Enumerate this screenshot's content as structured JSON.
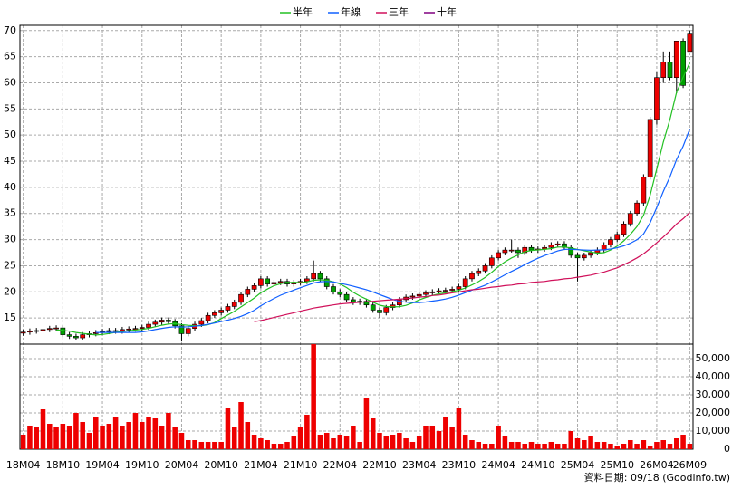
{
  "chart_data": {
    "type": "candlestick",
    "categories": [
      "18M04",
      null,
      null,
      null,
      null,
      null,
      "18M10",
      null,
      null,
      null,
      null,
      null,
      "19M04",
      null,
      null,
      null,
      null,
      null,
      "19M10",
      null,
      null,
      null,
      null,
      null,
      "20M04",
      null,
      null,
      null,
      null,
      null,
      "20M10",
      null,
      null,
      null,
      null,
      null,
      "21M04",
      null,
      null,
      null,
      null,
      null,
      "21M10",
      null,
      null,
      null,
      null,
      null,
      "22M04",
      null,
      null,
      null,
      null,
      null,
      "22M10",
      null,
      null,
      null,
      null,
      null,
      "23M04",
      null,
      null,
      null,
      null,
      null,
      "23M10",
      null,
      null,
      null,
      null,
      null,
      "24M04",
      null,
      null,
      null,
      null,
      null,
      "24M10",
      null,
      null,
      null,
      null,
      null,
      "25M04",
      null,
      null,
      null,
      null,
      null,
      "25M10",
      null,
      null,
      null,
      null,
      null,
      "26M04",
      null,
      null,
      null,
      null,
      "26M09"
    ],
    "open": [
      12.1,
      12.3,
      12.5,
      12.6,
      12.8,
      13.0,
      13.1,
      11.8,
      11.5,
      11.2,
      11.8,
      12.0,
      12.2,
      12.4,
      12.6,
      12.5,
      12.8,
      12.9,
      13.0,
      13.2,
      13.8,
      14.2,
      14.6,
      14.3,
      13.5,
      12.0,
      13.0,
      13.8,
      14.5,
      15.5,
      16.0,
      16.5,
      17.2,
      18.0,
      19.5,
      20.5,
      21.2,
      22.5,
      21.5,
      21.8,
      22.0,
      21.5,
      21.8,
      22.0,
      22.5,
      23.5,
      22.5,
      21.0,
      20.0,
      19.5,
      18.5,
      18.0,
      18.2,
      17.5,
      16.5,
      16.0,
      17.0,
      17.5,
      18.5,
      19.0,
      19.2,
      19.5,
      19.8,
      20.0,
      20.2,
      20.3,
      20.5,
      21.0,
      22.5,
      23.5,
      24.0,
      25.0,
      26.5,
      27.5,
      28.0,
      28.0,
      27.5,
      28.5,
      28.0,
      28.2,
      28.5,
      29.0,
      29.2,
      28.5,
      27.0,
      26.5,
      27.0,
      27.5,
      28.0,
      29.0,
      30.0,
      31.0,
      33.0,
      35.0,
      37.0,
      42.0,
      53.0,
      61.0,
      64.0,
      61.0,
      68.0,
      66.0
    ],
    "high": [
      12.8,
      13.0,
      13.1,
      13.3,
      13.5,
      13.6,
      13.6,
      12.3,
      12.0,
      12.3,
      12.5,
      12.7,
      12.9,
      13.1,
      13.1,
      13.3,
      13.4,
      13.5,
      13.7,
      14.3,
      14.7,
      15.1,
      15.1,
      14.8,
      14.0,
      13.5,
      14.3,
      15.0,
      16.0,
      16.5,
      17.0,
      17.7,
      18.5,
      20.0,
      21.0,
      21.7,
      23.0,
      23.0,
      22.3,
      22.5,
      22.5,
      22.3,
      22.5,
      23.0,
      26.0,
      24.0,
      23.0,
      21.5,
      20.5,
      20.0,
      19.0,
      18.7,
      18.7,
      18.0,
      17.0,
      17.5,
      18.0,
      19.0,
      19.5,
      19.7,
      20.0,
      20.3,
      20.5,
      20.7,
      20.8,
      21.0,
      21.5,
      23.0,
      24.0,
      24.5,
      25.5,
      27.0,
      28.0,
      28.5,
      30.0,
      28.5,
      29.0,
      29.0,
      28.7,
      29.0,
      29.5,
      29.7,
      29.7,
      29.0,
      27.5,
      27.5,
      28.0,
      28.5,
      29.5,
      30.5,
      31.5,
      33.5,
      35.5,
      37.5,
      42.5,
      53.5,
      62.0,
      66.0,
      66.0,
      68.0,
      68.5,
      70.0
    ],
    "low": [
      11.6,
      11.8,
      12.0,
      12.1,
      12.3,
      12.5,
      11.3,
      11.0,
      10.7,
      10.7,
      11.3,
      11.5,
      11.7,
      11.9,
      12.0,
      12.0,
      12.3,
      12.4,
      12.5,
      12.7,
      13.3,
      13.7,
      13.8,
      13.0,
      10.5,
      11.5,
      12.5,
      13.3,
      14.0,
      15.0,
      15.5,
      16.0,
      16.7,
      17.5,
      19.0,
      20.0,
      20.7,
      21.0,
      21.0,
      21.3,
      21.0,
      21.0,
      21.3,
      21.5,
      22.0,
      22.0,
      20.5,
      19.5,
      19.0,
      18.0,
      17.5,
      17.5,
      17.0,
      16.0,
      15.0,
      15.5,
      16.5,
      17.0,
      18.0,
      18.5,
      18.7,
      19.0,
      19.3,
      19.5,
      19.7,
      19.8,
      20.0,
      20.5,
      22.0,
      23.0,
      23.5,
      24.5,
      26.0,
      27.0,
      27.5,
      26.5,
      27.0,
      27.5,
      27.5,
      27.7,
      28.0,
      28.5,
      28.0,
      26.5,
      22.0,
      26.0,
      26.5,
      27.0,
      27.5,
      28.5,
      29.5,
      30.5,
      32.5,
      34.5,
      36.5,
      41.5,
      52.0,
      60.0,
      60.5,
      58.0,
      59.0,
      66.0
    ],
    "close": [
      12.3,
      12.5,
      12.6,
      12.8,
      13.0,
      13.1,
      11.8,
      11.5,
      11.2,
      11.8,
      12.0,
      12.2,
      12.4,
      12.6,
      12.5,
      12.8,
      12.9,
      13.0,
      13.2,
      13.8,
      14.2,
      14.6,
      14.3,
      13.5,
      12.0,
      13.0,
      13.8,
      14.5,
      15.5,
      16.0,
      16.5,
      17.2,
      18.0,
      19.5,
      20.5,
      21.2,
      22.5,
      21.5,
      21.8,
      22.0,
      21.5,
      21.8,
      22.0,
      22.5,
      23.5,
      22.5,
      21.0,
      20.0,
      19.5,
      18.5,
      18.0,
      18.2,
      17.5,
      16.5,
      16.0,
      17.0,
      17.5,
      18.5,
      19.0,
      19.2,
      19.5,
      19.8,
      20.0,
      20.2,
      20.3,
      20.5,
      21.0,
      22.5,
      23.5,
      24.0,
      25.0,
      26.5,
      27.5,
      28.0,
      28.0,
      27.5,
      28.5,
      28.0,
      28.2,
      28.5,
      29.0,
      29.2,
      28.5,
      27.0,
      26.5,
      27.0,
      27.5,
      28.0,
      29.0,
      30.0,
      31.0,
      33.0,
      35.0,
      37.0,
      42.0,
      53.0,
      61.0,
      64.0,
      61.0,
      68.0,
      59.5,
      69.5
    ],
    "up_color": "#ee0000",
    "down_color": "#00a000",
    "ylim": [
      10,
      71
    ],
    "yticks": [
      15,
      20,
      25,
      30,
      35,
      40,
      45,
      50,
      55,
      60,
      65,
      70
    ],
    "grid": true,
    "legend_position": "top",
    "series": [
      {
        "name": "半年",
        "color": "#22c022",
        "values": [
          null,
          null,
          null,
          null,
          null,
          12.7,
          12.63,
          12.47,
          12.23,
          12.07,
          11.9,
          11.75,
          11.85,
          12.03,
          12.25,
          12.42,
          12.57,
          12.7,
          12.83,
          13.03,
          13.32,
          13.62,
          13.85,
          13.93,
          13.73,
          13.6,
          13.53,
          13.52,
          13.72,
          14.13,
          14.88,
          15.58,
          16.28,
          17.12,
          17.95,
          18.82,
          19.82,
          20.53,
          21.17,
          21.58,
          21.75,
          21.85,
          21.77,
          21.93,
          22.22,
          22.3,
          22.22,
          21.92,
          21.5,
          20.83,
          19.92,
          19.2,
          18.62,
          18.03,
          17.45,
          17.2,
          17.12,
          17.17,
          17.42,
          17.87,
          18.45,
          18.92,
          19.33,
          19.62,
          19.83,
          20.05,
          20.3,
          20.75,
          21.33,
          21.97,
          22.75,
          23.75,
          24.83,
          25.75,
          26.5,
          27.08,
          27.67,
          27.92,
          28.03,
          28.12,
          28.28,
          28.57,
          28.57,
          28.4,
          28.12,
          27.87,
          27.62,
          27.42,
          27.5,
          28.0,
          28.75,
          29.75,
          31.0,
          32.5,
          34.67,
          38.5,
          43.5,
          48.67,
          53.0,
          58.17,
          61.08,
          63.83
        ]
      },
      {
        "name": "年線",
        "color": "#1060ff",
        "values": [
          null,
          null,
          null,
          null,
          null,
          null,
          null,
          null,
          null,
          null,
          null,
          12.23,
          12.24,
          12.25,
          12.24,
          12.25,
          12.24,
          12.23,
          12.34,
          12.53,
          12.79,
          13.02,
          13.21,
          13.32,
          13.28,
          13.32,
          13.43,
          13.57,
          13.79,
          14.03,
          14.31,
          14.59,
          14.91,
          15.32,
          15.84,
          16.48,
          17.35,
          18.06,
          18.73,
          19.35,
          19.85,
          20.34,
          20.8,
          21.23,
          21.7,
          21.94,
          21.99,
          21.89,
          21.64,
          21.38,
          21.07,
          20.75,
          20.42,
          19.98,
          19.48,
          19.02,
          18.52,
          18.19,
          18.02,
          17.95,
          17.95,
          18.06,
          18.23,
          18.4,
          18.63,
          18.96,
          19.38,
          19.84,
          20.33,
          20.8,
          21.29,
          21.9,
          22.57,
          23.25,
          23.92,
          24.53,
          25.21,
          25.84,
          26.43,
          26.94,
          27.39,
          27.83,
          28.12,
          28.16,
          28.08,
          28.0,
          27.95,
          28.0,
          28.04,
          28.2,
          28.44,
          28.81,
          29.31,
          29.96,
          31.09,
          33.25,
          36.13,
          39.21,
          42.0,
          45.34,
          47.88,
          51.17
        ]
      },
      {
        "name": "三年",
        "color": "#d0105a",
        "values": [
          null,
          null,
          null,
          null,
          null,
          null,
          null,
          null,
          null,
          null,
          null,
          null,
          null,
          null,
          null,
          null,
          null,
          null,
          null,
          null,
          null,
          null,
          null,
          null,
          null,
          null,
          null,
          null,
          null,
          null,
          null,
          null,
          null,
          null,
          null,
          14.3,
          14.5,
          14.8,
          15.1,
          15.4,
          15.7,
          16.0,
          16.3,
          16.6,
          16.9,
          17.1,
          17.3,
          17.5,
          17.7,
          17.8,
          17.9,
          18.0,
          18.1,
          18.2,
          18.3,
          18.4,
          18.5,
          18.6,
          18.7,
          18.8,
          19.0,
          19.1,
          19.3,
          19.4,
          19.6,
          19.8,
          20.0,
          20.2,
          20.4,
          20.5,
          20.7,
          20.9,
          21.0,
          21.2,
          21.3,
          21.5,
          21.6,
          21.8,
          21.9,
          22.0,
          22.2,
          22.3,
          22.5,
          22.6,
          22.8,
          23.0,
          23.2,
          23.5,
          23.8,
          24.2,
          24.6,
          25.2,
          25.8,
          26.5,
          27.3,
          28.3,
          29.4,
          30.5,
          31.7,
          33.0,
          34.0,
          35.2
        ]
      },
      {
        "name": "十年",
        "color": "#800080",
        "values": [
          null,
          null,
          null,
          null,
          null,
          null,
          null,
          null,
          null,
          null,
          null,
          null,
          null,
          null,
          null,
          null,
          null,
          null,
          null,
          null,
          null,
          null,
          null,
          null,
          null,
          null,
          null,
          null,
          null,
          null,
          null,
          null,
          null,
          null,
          null,
          null,
          null,
          null,
          null,
          null,
          null,
          null,
          null,
          null,
          null,
          null,
          null,
          null,
          null,
          null,
          null,
          null,
          null,
          null,
          null,
          null,
          null,
          null,
          null,
          null,
          null,
          null,
          null,
          null,
          null,
          null,
          null,
          null,
          null,
          null,
          null,
          null,
          null,
          null,
          null,
          null,
          null,
          null,
          null,
          null,
          null,
          null,
          null,
          null,
          null,
          null,
          null,
          null,
          null,
          null,
          null,
          null,
          null,
          null,
          null,
          null,
          null,
          null,
          null,
          null,
          null,
          null
        ]
      }
    ],
    "volume": {
      "color": "#ee0000",
      "values": [
        8000,
        13000,
        12000,
        22000,
        14000,
        12000,
        14000,
        13000,
        20000,
        15000,
        9000,
        18000,
        13000,
        14000,
        18000,
        13000,
        15000,
        20000,
        15000,
        18000,
        17000,
        13000,
        20000,
        12000,
        9000,
        5000,
        5000,
        4000,
        4000,
        4000,
        4000,
        23000,
        12000,
        26000,
        15000,
        8000,
        6000,
        5000,
        3000,
        3000,
        4000,
        7000,
        12000,
        19000,
        58000,
        8000,
        9000,
        6000,
        8000,
        7000,
        13000,
        4000,
        28000,
        17000,
        9000,
        7000,
        8000,
        9000,
        6000,
        4000,
        7000,
        13000,
        13000,
        10000,
        18000,
        12000,
        23000,
        8000,
        5000,
        4000,
        3000,
        3000,
        13000,
        7000,
        4000,
        4000,
        3000,
        4000,
        3000,
        3000,
        4000,
        3000,
        3000,
        10000,
        6000,
        5000,
        7000,
        4000,
        4000,
        3000,
        2000,
        3000,
        5000,
        3000,
        5000,
        2000,
        4000,
        5000,
        3000,
        6000,
        8000,
        3000
      ],
      "ylim": [
        0,
        58000
      ],
      "yticks": [
        0,
        {
          "value": 10000,
          "label": "10,000"
        },
        {
          "value": 20000,
          "label": "20,000"
        },
        {
          "value": 30000,
          "label": "30,000"
        },
        {
          "value": 40000,
          "label": "40,000"
        },
        {
          "value": 50000,
          "label": "50,000"
        }
      ]
    },
    "footer": "資料日期: 09/18  (Goodinfo.tw)"
  }
}
